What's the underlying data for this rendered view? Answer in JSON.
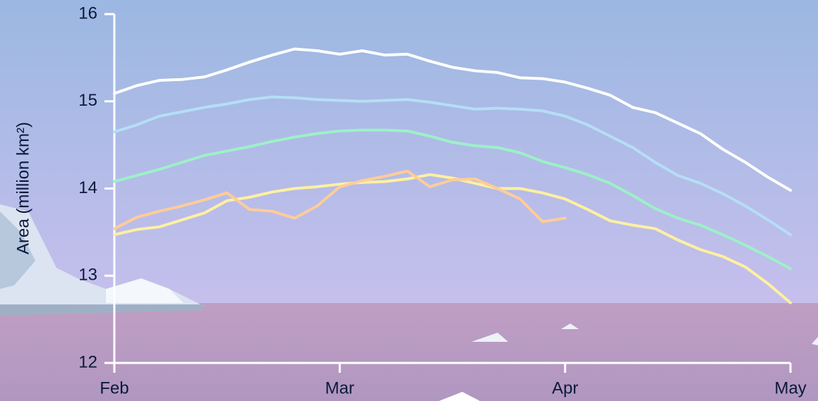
{
  "chart_data": {
    "type": "line",
    "y_label": "Area (million km²)",
    "x": [
      0,
      0.1,
      0.2,
      0.3,
      0.4,
      0.5,
      0.6,
      0.7,
      0.8,
      0.9,
      1,
      1.1,
      1.2,
      1.3,
      1.4,
      1.5,
      1.6,
      1.7,
      1.8,
      1.9,
      2,
      2.1,
      2.2,
      2.3,
      2.4,
      2.5,
      2.6,
      2.7,
      2.8,
      2.9,
      3
    ],
    "xlim": [
      0,
      3
    ],
    "xticks": [
      {
        "value": 0,
        "label": "Feb"
      },
      {
        "value": 1,
        "label": "Mar"
      },
      {
        "value": 2,
        "label": "Apr"
      },
      {
        "value": 3,
        "label": "May"
      }
    ],
    "ylim": [
      12,
      16
    ],
    "yticks": [
      12,
      13,
      14,
      15,
      16
    ],
    "series": [
      {
        "color": "#ffffff",
        "values": [
          15.09,
          15.18,
          15.24,
          15.25,
          15.28,
          15.36,
          15.45,
          15.53,
          15.6,
          15.58,
          15.54,
          15.58,
          15.53,
          15.54,
          15.46,
          15.39,
          15.35,
          15.33,
          15.27,
          15.26,
          15.22,
          15.15,
          15.07,
          14.93,
          14.87,
          14.75,
          14.63,
          14.45,
          14.3,
          14.13,
          13.98
        ]
      },
      {
        "color": "#b5def5",
        "values": [
          14.65,
          14.73,
          14.83,
          14.88,
          14.93,
          14.97,
          15.02,
          15.05,
          15.04,
          15.02,
          15.01,
          15.0,
          15.01,
          15.02,
          14.99,
          14.95,
          14.91,
          14.92,
          14.91,
          14.89,
          14.83,
          14.73,
          14.6,
          14.47,
          14.3,
          14.15,
          14.06,
          13.94,
          13.8,
          13.64,
          13.47
        ]
      },
      {
        "color": "#9df0c8",
        "values": [
          14.08,
          14.15,
          14.22,
          14.3,
          14.38,
          14.43,
          14.48,
          14.54,
          14.59,
          14.63,
          14.66,
          14.67,
          14.67,
          14.66,
          14.6,
          14.53,
          14.49,
          14.47,
          14.41,
          14.31,
          14.24,
          14.16,
          14.06,
          13.92,
          13.77,
          13.66,
          13.58,
          13.47,
          13.35,
          13.22,
          13.08
        ]
      },
      {
        "color": "#fff0a0",
        "values": [
          13.47,
          13.53,
          13.56,
          13.64,
          13.72,
          13.86,
          13.9,
          13.96,
          14.0,
          14.02,
          14.05,
          14.07,
          14.08,
          14.11,
          14.16,
          14.12,
          14.06,
          14.0,
          14.0,
          13.95,
          13.88,
          13.76,
          13.63,
          13.58,
          13.54,
          13.41,
          13.3,
          13.22,
          13.1,
          12.91,
          12.69
        ]
      },
      {
        "color": "#ffcc99",
        "values": [
          13.54,
          13.67,
          13.74,
          13.8,
          13.87,
          13.95,
          13.76,
          13.74,
          13.66,
          13.8,
          14.02,
          14.09,
          14.14,
          14.2,
          14.02,
          14.1,
          14.11,
          14.0,
          13.88,
          13.62,
          13.66,
          null,
          null,
          null,
          null,
          null,
          null,
          null,
          null,
          null,
          null
        ]
      }
    ]
  }
}
